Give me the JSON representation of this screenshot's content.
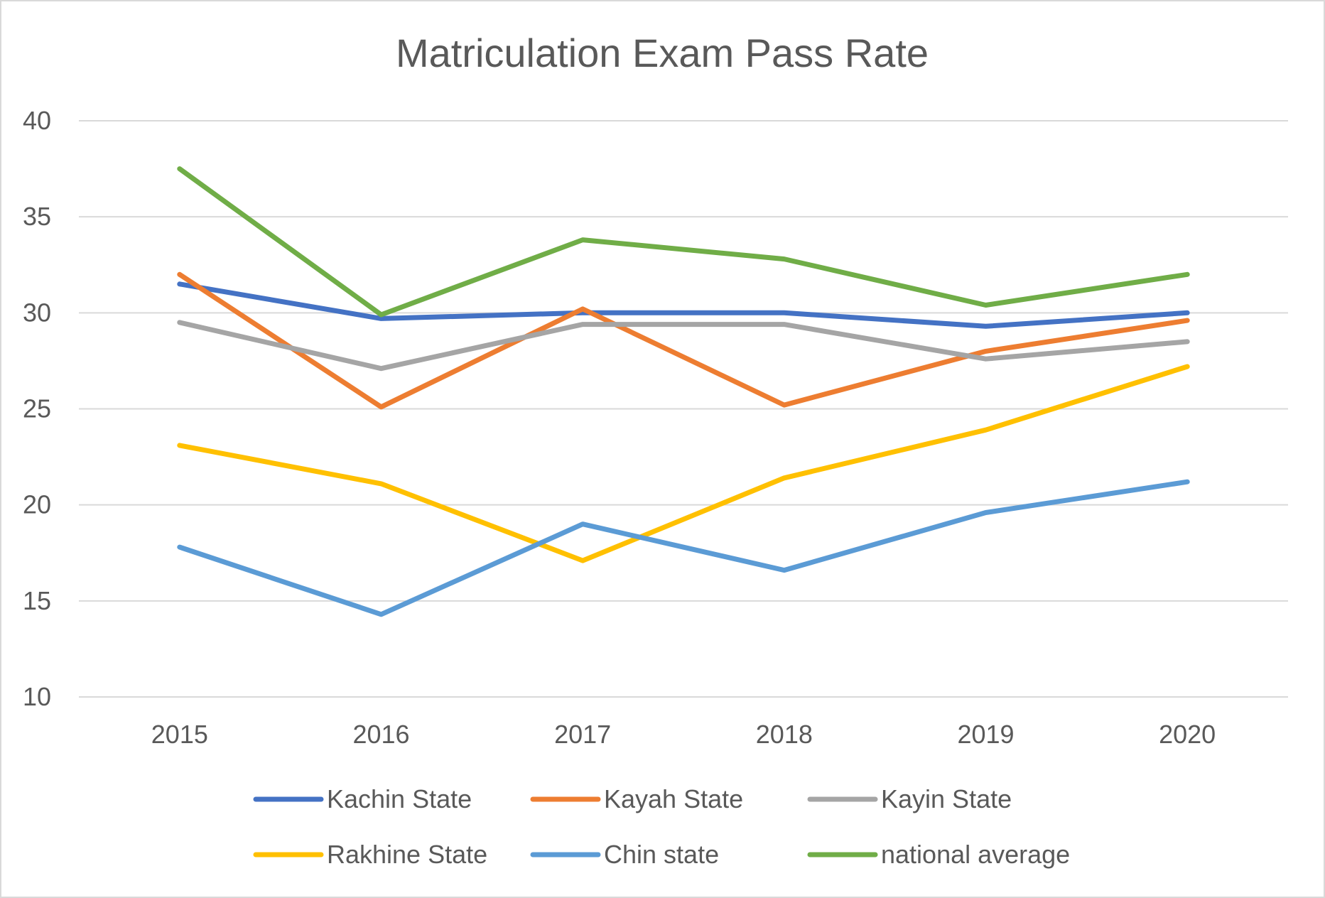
{
  "chart_data": {
    "type": "line",
    "title": "Matriculation Exam Pass Rate",
    "xlabel": "",
    "ylabel": "",
    "x": [
      "2015",
      "2016",
      "2017",
      "2018",
      "2019",
      "2020"
    ],
    "ylim": [
      10,
      40
    ],
    "yticks": [
      "10",
      "15",
      "20",
      "25",
      "30",
      "35",
      "40"
    ],
    "grid": true,
    "legend_position": "bottom",
    "series": [
      {
        "name": "Kachin State",
        "color": "#4472C4",
        "values": [
          31.5,
          29.7,
          30.0,
          30.0,
          29.3,
          30.0
        ]
      },
      {
        "name": "Kayah State",
        "color": "#ED7D31",
        "values": [
          32.0,
          25.1,
          30.2,
          25.2,
          28.0,
          29.6
        ]
      },
      {
        "name": "Kayin State",
        "color": "#A5A5A5",
        "values": [
          29.5,
          27.1,
          29.4,
          29.4,
          27.6,
          28.5
        ]
      },
      {
        "name": "Rakhine State",
        "color": "#FFC000",
        "values": [
          23.1,
          21.1,
          17.1,
          21.4,
          23.9,
          27.2
        ]
      },
      {
        "name": "Chin state",
        "color": "#5B9BD5",
        "values": [
          17.8,
          14.3,
          19.0,
          16.6,
          19.6,
          21.2
        ]
      },
      {
        "name": "national average",
        "color": "#70AD47",
        "values": [
          37.5,
          29.9,
          33.8,
          32.8,
          30.4,
          32.0
        ]
      }
    ]
  }
}
